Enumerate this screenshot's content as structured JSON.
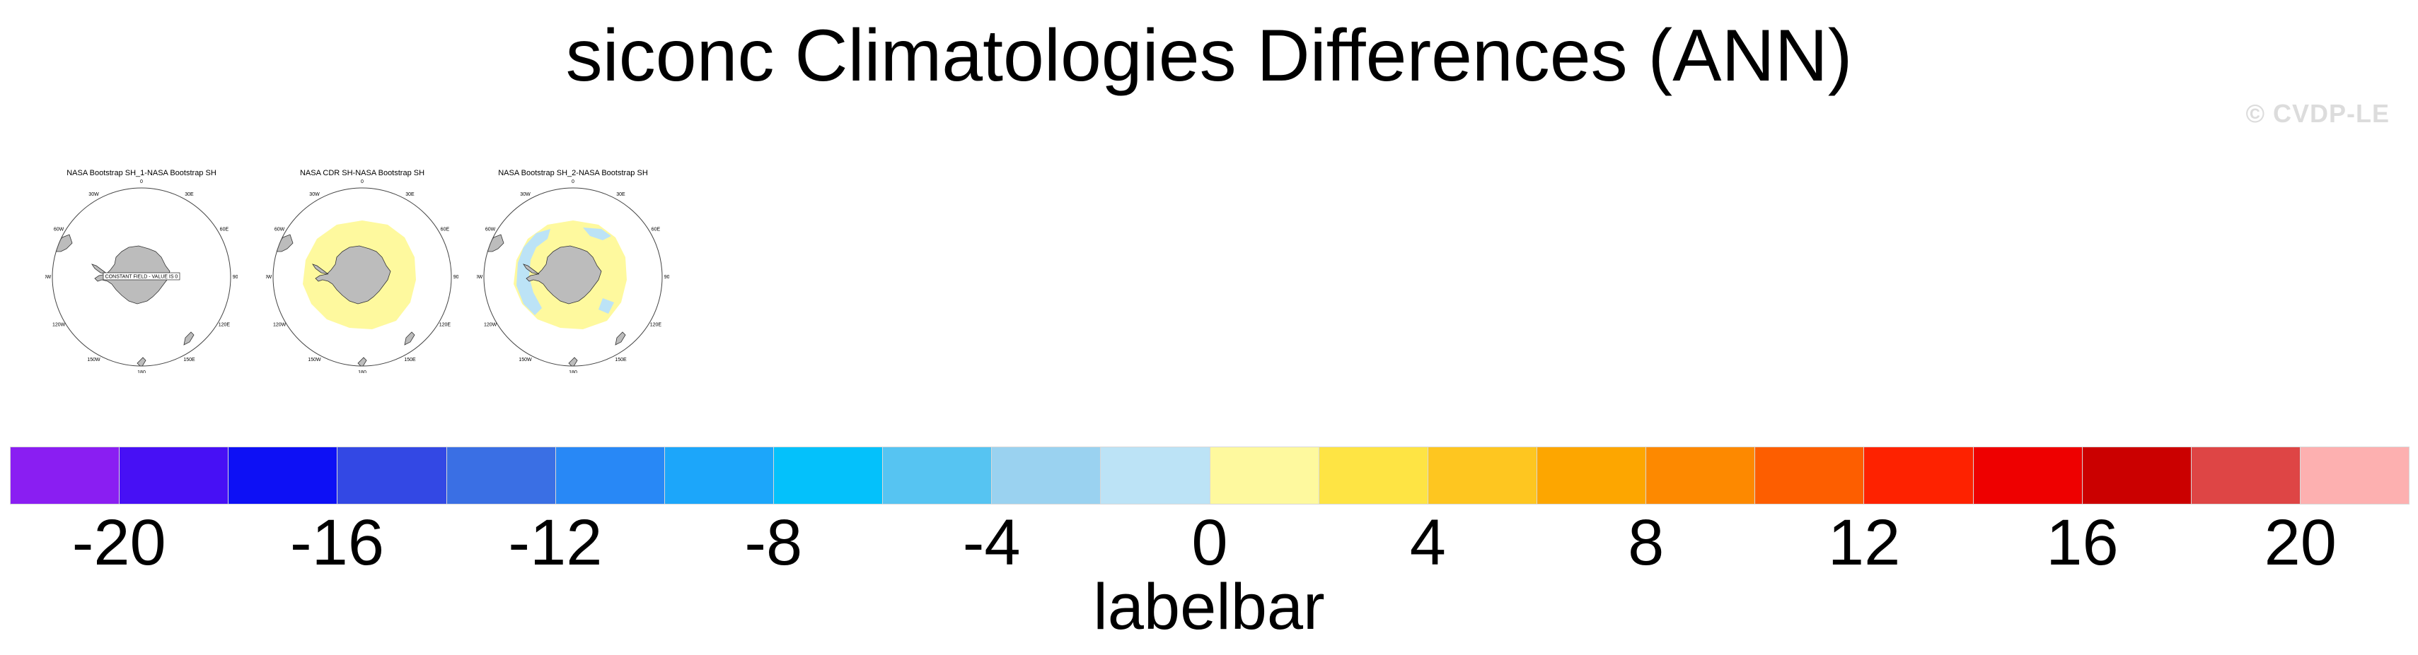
{
  "title": "siconc Climatologies Differences (ANN)",
  "watermark": "© CVDP-LE",
  "panels": [
    {
      "title": "NASA Bootstrap SH_1-NASA Bootstrap SH",
      "note": "CONSTANT FIELD - VALUE IS 0",
      "fill": "none"
    },
    {
      "title": "NASA CDR SH-NASA Bootstrap SH",
      "fill": "positive"
    },
    {
      "title": "NASA Bootstrap SH_2-NASA Bootstrap SH",
      "fill": "mixed"
    }
  ],
  "lon_labels": [
    "0",
    "30E",
    "60E",
    "90E",
    "120E",
    "150E",
    "180",
    "150W",
    "120W",
    "90W",
    "60W",
    "30W"
  ],
  "chart_data": {
    "type": "labelbar",
    "title": "labelbar",
    "tick_labels": [
      "-20",
      "-16",
      "-12",
      "-8",
      "-4",
      "0",
      "4",
      "8",
      "12",
      "16",
      "20"
    ],
    "tick_values": [
      -20,
      -16,
      -12,
      -8,
      -4,
      0,
      4,
      8,
      12,
      16,
      20
    ],
    "levels": [
      -20,
      -18,
      -16,
      -14,
      -12,
      -10,
      -8,
      -6,
      -4,
      -2,
      0,
      2,
      4,
      6,
      8,
      10,
      12,
      14,
      16,
      18,
      20
    ],
    "colors": [
      "#8a1ef2",
      "#4710f5",
      "#0d10f5",
      "#3348e4",
      "#3a6fe4",
      "#2888f6",
      "#1ca6fa",
      "#04c1fb",
      "#56c4f2",
      "#9ad2f0",
      "#bce3f6",
      "#fef99e",
      "#fee444",
      "#fec620",
      "#fda600",
      "#fd8900",
      "#fd5e00",
      "#fe2200",
      "#ee0000",
      "#cb0000",
      "#de4545",
      "#fdb0b0"
    ]
  }
}
